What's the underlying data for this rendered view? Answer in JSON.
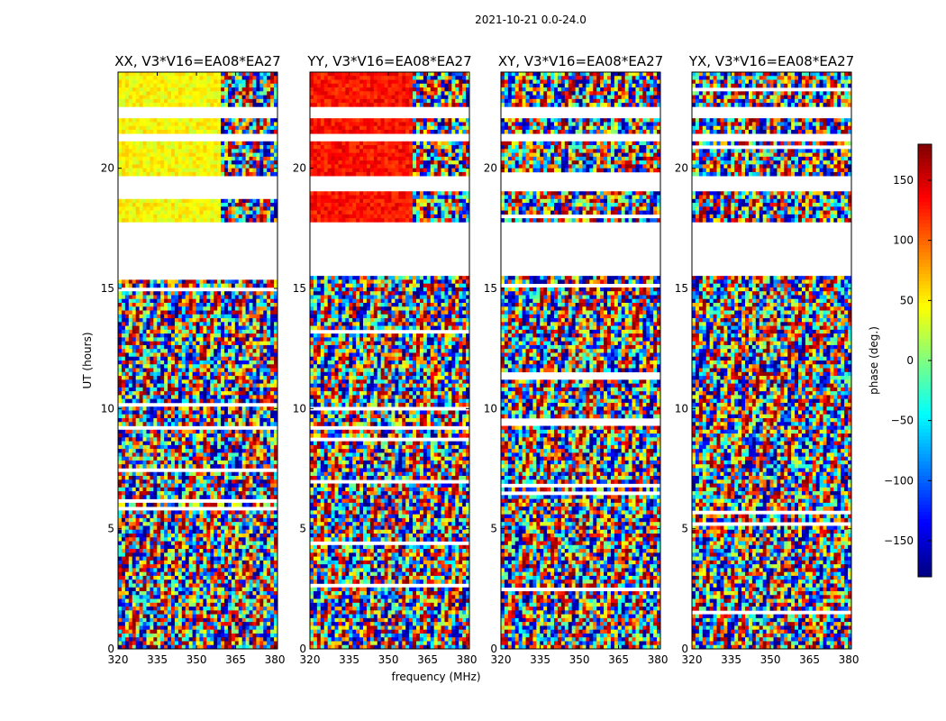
{
  "title": "2021-10-21 0.0-24.0",
  "chart_data": {
    "type": "heatmap",
    "xlabel": "frequency (MHz)",
    "ylabel": "UT (hours)",
    "xlim": [
      320,
      381
    ],
    "ylim": [
      0,
      24
    ],
    "xticks": [
      320,
      335,
      350,
      365,
      380
    ],
    "yticks": [
      0,
      5,
      10,
      15,
      20
    ],
    "colorbar": {
      "label": "phase (deg.)",
      "range": [
        -180,
        180
      ],
      "ticks": [
        150,
        100,
        50,
        0,
        -50,
        -100,
        -150
      ],
      "tick_labels": [
        "150",
        "100",
        "50",
        "0",
        "−50",
        "−100",
        "−150"
      ],
      "colormap": "jet"
    },
    "panels": [
      {
        "name": "XX, V3*V16=EA08*EA27",
        "coherent_phase": 45
      },
      {
        "name": "YY, V3*V16=EA08*EA27",
        "coherent_phase": 130
      },
      {
        "name": "XY, V3*V16=EA08*EA27",
        "coherent_phase": null
      },
      {
        "name": "YX, V3*V16=EA08*EA27",
        "coherent_phase": null
      }
    ],
    "no_data_ut_ranges": [
      [
        15.5,
        17.7
      ],
      [
        19.1,
        19.6
      ],
      [
        21.1,
        21.4
      ],
      [
        22.1,
        22.6
      ]
    ]
  }
}
